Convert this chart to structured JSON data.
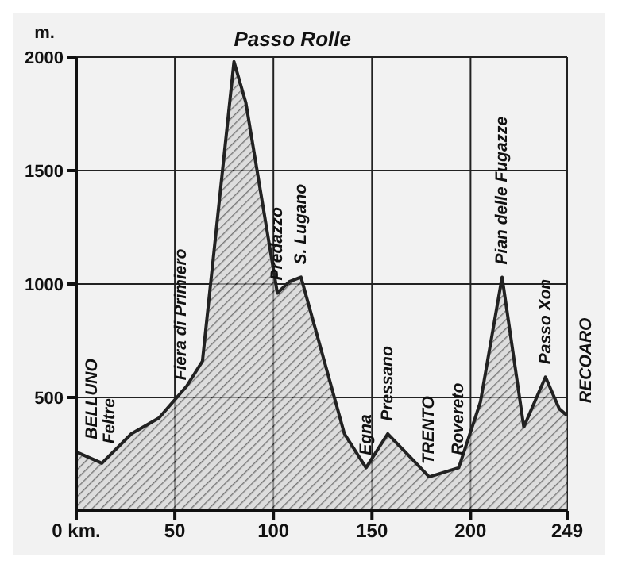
{
  "chart_data": {
    "type": "area",
    "ylabel": "m.",
    "color": "#222222",
    "x": [
      0,
      13,
      28,
      42,
      56,
      64,
      80,
      86,
      102,
      108,
      114,
      122,
      136,
      147,
      158,
      179,
      194,
      205,
      216,
      227,
      238,
      245,
      249
    ],
    "values": [
      260,
      210,
      340,
      410,
      550,
      660,
      1980,
      1800,
      960,
      1010,
      1030,
      780,
      340,
      190,
      340,
      150,
      190,
      480,
      1030,
      370,
      590,
      450,
      420
    ],
    "xlim": [
      0,
      249
    ],
    "ylim": [
      0,
      2000
    ],
    "xticks": [
      {
        "value": 0,
        "label": "0 km."
      },
      50,
      100,
      150,
      200,
      249
    ],
    "yticks": [
      500,
      1000,
      1500,
      2000
    ],
    "grid": true,
    "annotations": [
      {
        "text": "BELLUNO",
        "x": 0,
        "y": 260
      },
      {
        "text": "Feltre",
        "x": 17,
        "y": 240
      },
      {
        "text": "Fiera di Primiero",
        "x": 53,
        "y": 520
      },
      {
        "text": "Passo Rolle",
        "x": 80,
        "y": 1980
      },
      {
        "text": "Predazzo",
        "x": 102,
        "y": 960
      },
      {
        "text": "S. Lugano",
        "x": 114,
        "y": 1030
      },
      {
        "text": "Egna",
        "x": 147,
        "y": 190
      },
      {
        "text": "Pressano",
        "x": 158,
        "y": 340
      },
      {
        "text": "TRENTO",
        "x": 179,
        "y": 150
      },
      {
        "text": "Rovereto",
        "x": 194,
        "y": 190
      },
      {
        "text": "Pian delle Fugazze",
        "x": 216,
        "y": 1030
      },
      {
        "text": "Passo Xon",
        "x": 238,
        "y": 590
      },
      {
        "text": "RECOARO",
        "x": 249,
        "y": 420
      }
    ]
  }
}
